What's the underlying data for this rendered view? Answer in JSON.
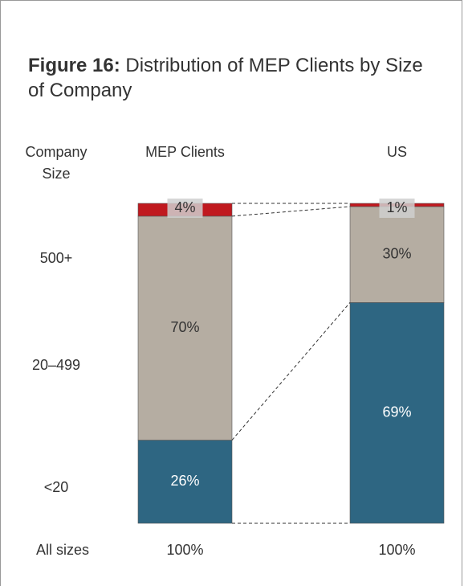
{
  "chart_data": {
    "type": "stacked-bar",
    "title_label": "Figure 16:",
    "title": "Distribution of MEP Clients by Size of Company",
    "row_header": "Company Size",
    "categories": [
      "MEP Clients",
      "US"
    ],
    "ylim": [
      0,
      100
    ],
    "series": [
      {
        "name": "<20",
        "color": "#2e6682",
        "label_color": "#ffffff",
        "values": [
          26,
          69
        ],
        "value_labels": [
          "26%",
          "69%"
        ]
      },
      {
        "name": "20–499",
        "color": "#b5ada2",
        "label_color": "#333333",
        "values": [
          70,
          30
        ],
        "value_labels": [
          "70%",
          "30%"
        ]
      },
      {
        "name": "500+",
        "color": "#c0191f",
        "label_color": "#333333",
        "values": [
          4,
          1
        ],
        "value_labels": [
          "4%",
          "1%"
        ]
      }
    ],
    "total_label": "All sizes",
    "totals": {
      "values": [
        100,
        100
      ],
      "value_labels": [
        "100%",
        "100%"
      ]
    }
  }
}
